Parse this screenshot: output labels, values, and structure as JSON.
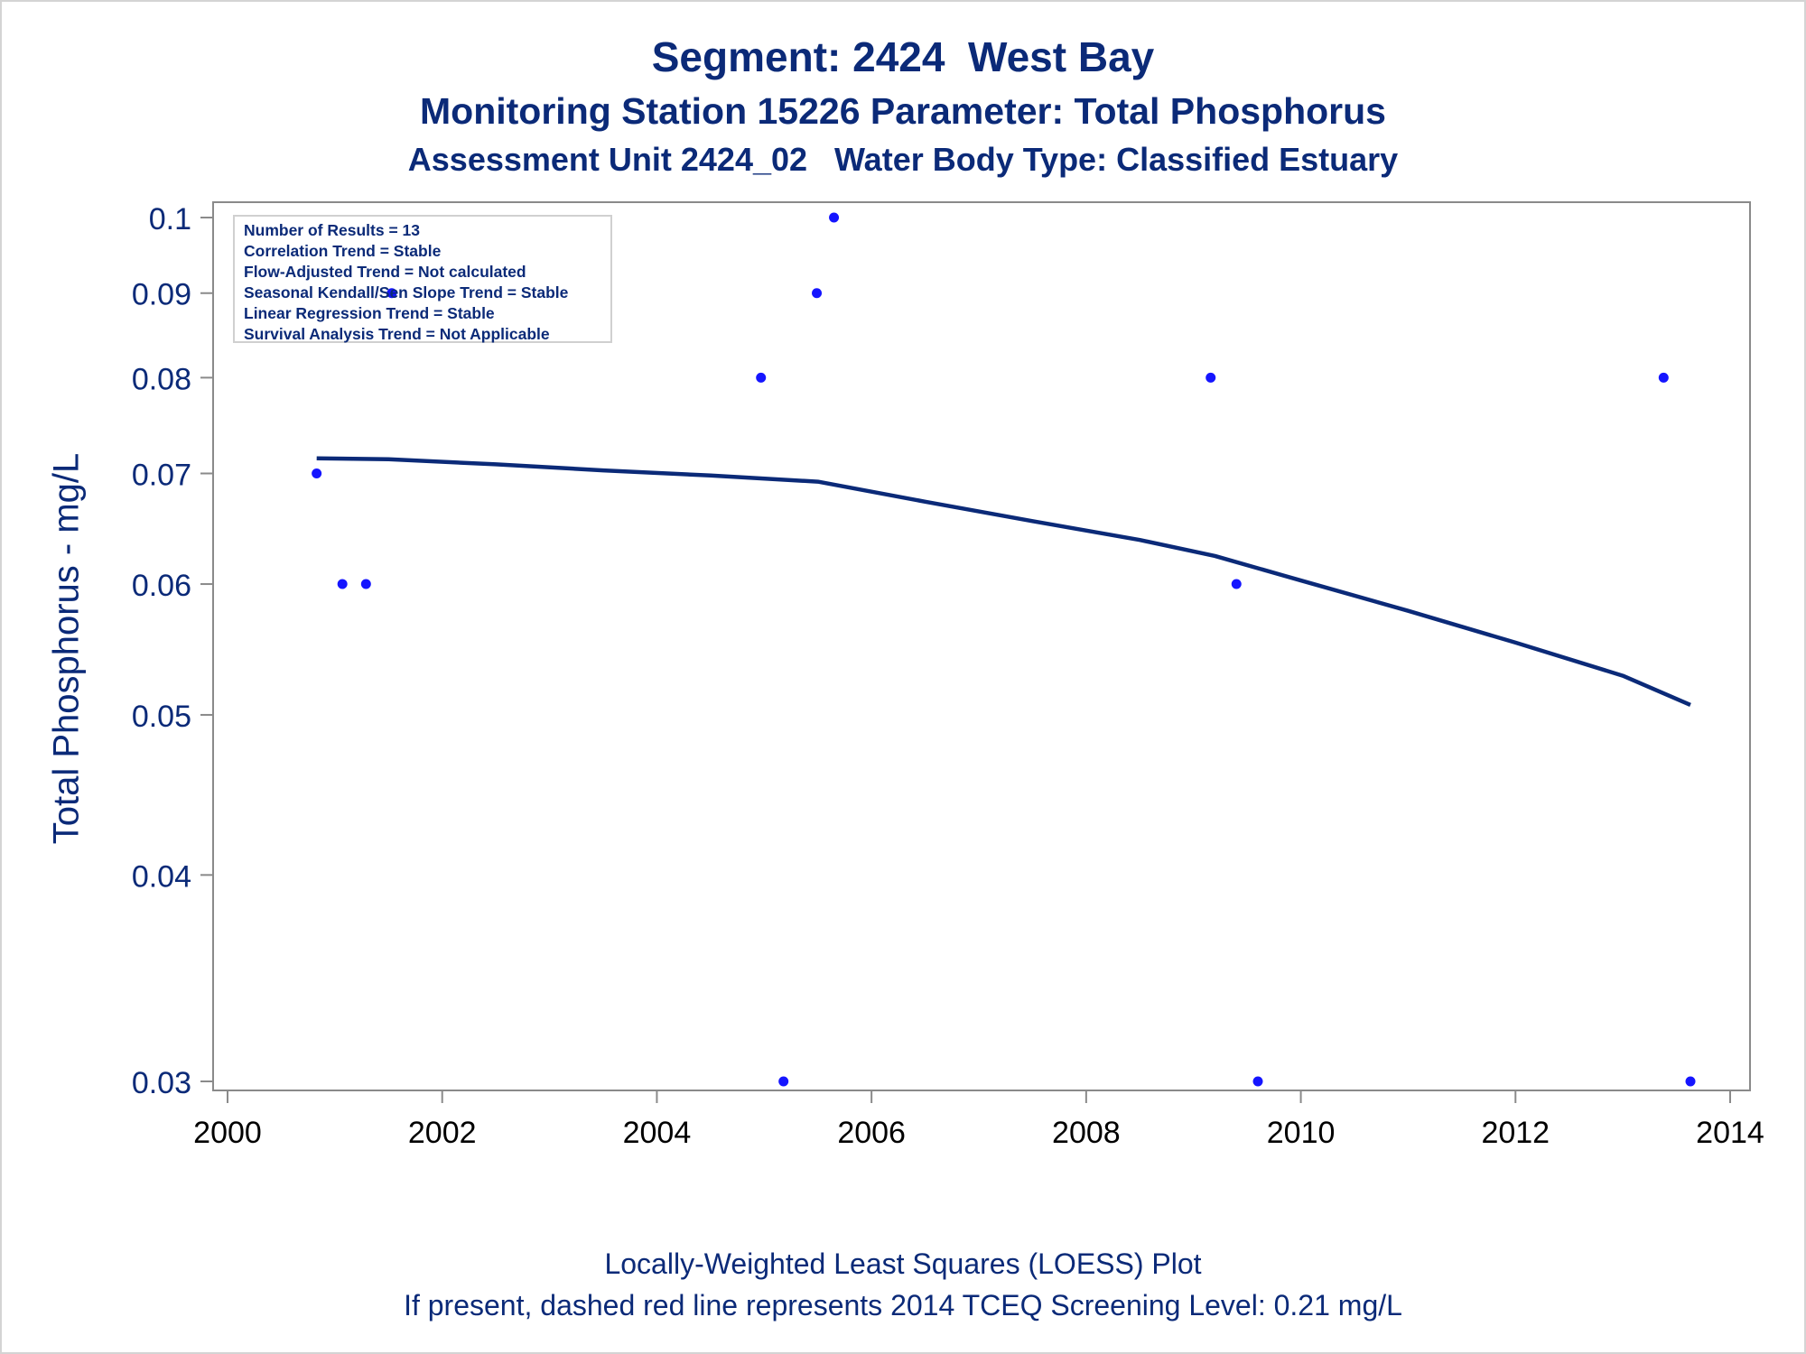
{
  "titles": {
    "line1": "Segment: 2424  West Bay",
    "line2": "Monitoring Station 15226 Parameter: Total Phosphorus",
    "line3": "Assessment Unit 2424_02   Water Body Type: Classified Estuary"
  },
  "footnotes": {
    "line1": "Locally-Weighted Least Squares (LOESS) Plot",
    "line2": "If present, dashed red line represents 2014 TCEQ Screening Level: 0.21 mg/L"
  },
  "stats_box": [
    "Number of Results = 13",
    "Correlation Trend = Stable",
    "Flow-Adjusted Trend = Not calculated",
    "Seasonal Kendall/Sen Slope Trend = Stable",
    "Linear Regression Trend = Stable",
    "Survival Analysis Trend = Not Applicable"
  ],
  "colors": {
    "text": "#0b2a78",
    "points": "#1515ff",
    "loess": "#0b2a78",
    "axis": "#8a8a8a"
  },
  "chart_data": {
    "type": "scatter",
    "ylabel": "Total Phosphorus - mg/L",
    "y_scale": "log",
    "xlim": [
      2000,
      2014
    ],
    "ylim": [
      0.03,
      0.1
    ],
    "x_ticks": [
      "2000",
      "2002",
      "2004",
      "2006",
      "2008",
      "2010",
      "2012",
      "2014"
    ],
    "y_ticks": [
      "0.1",
      "0.09",
      "0.08",
      "0.07",
      "0.06",
      "0.05",
      "0.04",
      "0.03"
    ],
    "grid": false,
    "points": [
      {
        "x": 2000.83,
        "y": 0.07
      },
      {
        "x": 2001.07,
        "y": 0.06
      },
      {
        "x": 2001.29,
        "y": 0.06
      },
      {
        "x": 2001.53,
        "y": 0.09
      },
      {
        "x": 2004.97,
        "y": 0.08
      },
      {
        "x": 2005.18,
        "y": 0.03
      },
      {
        "x": 2005.49,
        "y": 0.09
      },
      {
        "x": 2005.65,
        "y": 0.1
      },
      {
        "x": 2009.16,
        "y": 0.08
      },
      {
        "x": 2009.4,
        "y": 0.06
      },
      {
        "x": 2009.6,
        "y": 0.03
      },
      {
        "x": 2013.38,
        "y": 0.08
      },
      {
        "x": 2013.63,
        "y": 0.03
      }
    ],
    "loess_line": [
      {
        "x": 2000.83,
        "y": 0.0715
      },
      {
        "x": 2001.5,
        "y": 0.0714
      },
      {
        "x": 2002.5,
        "y": 0.0709
      },
      {
        "x": 2003.5,
        "y": 0.0703
      },
      {
        "x": 2004.5,
        "y": 0.0698
      },
      {
        "x": 2005.5,
        "y": 0.0692
      },
      {
        "x": 2006.5,
        "y": 0.0673
      },
      {
        "x": 2007.5,
        "y": 0.0655
      },
      {
        "x": 2008.5,
        "y": 0.0638
      },
      {
        "x": 2009.2,
        "y": 0.0624
      },
      {
        "x": 2010.0,
        "y": 0.0603
      },
      {
        "x": 2011.0,
        "y": 0.0578
      },
      {
        "x": 2012.0,
        "y": 0.0553
      },
      {
        "x": 2013.0,
        "y": 0.0528
      },
      {
        "x": 2013.63,
        "y": 0.0507
      }
    ]
  }
}
